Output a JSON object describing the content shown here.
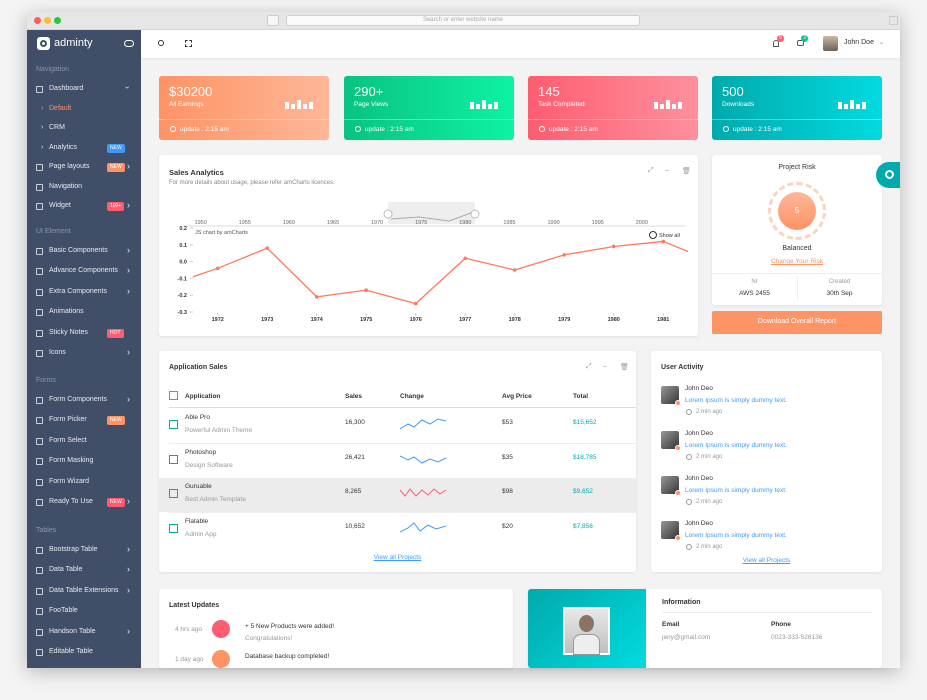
{
  "browser": {
    "address": "Search or enter website name"
  },
  "sidebar": {
    "brand": "adminty",
    "sections": [
      {
        "title": "Navigation",
        "items": [
          {
            "label": "Dashboard",
            "children": [
              {
                "label": "Default"
              },
              {
                "label": "CRM"
              },
              {
                "label": "Analytics",
                "badge": "NEW",
                "badge_color": "#4099ff"
              }
            ]
          },
          {
            "label": "Page layouts",
            "badge": "NEW",
            "badge_color": "#fe9365",
            "submenu": true
          },
          {
            "label": "Navigation"
          },
          {
            "label": "Widget",
            "badge": "100+",
            "badge_color": "#fe5d70",
            "submenu": true
          }
        ]
      },
      {
        "title": "UI Element",
        "items": [
          {
            "label": "Basic Components",
            "submenu": true
          },
          {
            "label": "Advance Components",
            "submenu": true
          },
          {
            "label": "Extra Components",
            "submenu": true
          },
          {
            "label": "Animations"
          },
          {
            "label": "Sticky Notes",
            "badge": "HOT",
            "badge_color": "#fe5d70"
          },
          {
            "label": "Icons",
            "submenu": true
          }
        ]
      },
      {
        "title": "Forms",
        "items": [
          {
            "label": "Form Components",
            "submenu": true
          },
          {
            "label": "Form Picker",
            "badge": "NEW",
            "badge_color": "#fe9365"
          },
          {
            "label": "Form Select"
          },
          {
            "label": "Form Masking"
          },
          {
            "label": "Form Wizard"
          },
          {
            "label": "Ready To Use",
            "badge": "NEW",
            "badge_color": "#fe5d70",
            "submenu": true
          }
        ]
      },
      {
        "title": "Tables",
        "items": [
          {
            "label": "Bootstrap Table",
            "submenu": true
          },
          {
            "label": "Data Table",
            "submenu": true
          },
          {
            "label": "Data Table Extensions",
            "submenu": true
          },
          {
            "label": "FooTable"
          },
          {
            "label": "Handson Table",
            "submenu": true
          },
          {
            "label": "Editable Table"
          }
        ]
      }
    ]
  },
  "header": {
    "notifications": "5",
    "messages": "3",
    "user": "John Doe"
  },
  "stats": [
    {
      "value": "$30200",
      "label": "All Earnings",
      "update": "update : 2:15 am",
      "colors": [
        "#fe9365",
        "#feb798"
      ]
    },
    {
      "value": "290+",
      "label": "Page Views",
      "update": "update : 2:15 am",
      "colors": [
        "#0ac282",
        "#0df3a3"
      ]
    },
    {
      "value": "145",
      "label": "Task Completed",
      "update": "update : 2:15 am",
      "colors": [
        "#fe5d70",
        "#fe909d"
      ]
    },
    {
      "value": "500",
      "label": "Downloads",
      "update": "update : 2:15 am",
      "colors": [
        "#01a9ac",
        "#01dbdf"
      ]
    }
  ],
  "sales_analytics": {
    "title": "Sales Analytics",
    "subtitle": "For more details about usage, please refer amCharts licences.",
    "chart": {
      "type": "line",
      "x": [
        1971.5,
        1972,
        1973,
        1974,
        1975,
        1976,
        1977,
        1978,
        1979,
        1980,
        1981,
        1981.5
      ],
      "values": [
        -0.09,
        -0.04,
        0.08,
        -0.21,
        -0.17,
        -0.25,
        0.02,
        -0.05,
        0.04,
        0.09,
        0.12,
        0.06
      ],
      "color": "#fe7a5a",
      "xlim": [
        1971.5,
        1981.5
      ],
      "xticks": [
        1972,
        1973,
        1974,
        1975,
        1976,
        1977,
        1978,
        1979,
        1980,
        1981
      ],
      "ylim": [
        -0.3,
        0.2
      ],
      "yticks": [
        0.2,
        0.1,
        {
          "value": 0,
          "label": "0.0"
        },
        -0.1,
        -0.2,
        -0.3
      ],
      "scroll_xlim": [
        1948,
        2005
      ],
      "scroll_xticks": [
        1950,
        1955,
        1960,
        1965,
        1970,
        1975,
        1980,
        1985,
        1990,
        1995,
        2000
      ],
      "credit": "JS chart by amCharts",
      "reset": "Show all"
    }
  },
  "project_risk": {
    "title": "Project Risk",
    "score": "5",
    "status": "Balanced",
    "link": "Change Your Risk",
    "nr_label": "Nr",
    "nr_value": "AWS 2455",
    "created_label": "Created",
    "created_value": "30th Sep",
    "button": "Download Overall Report"
  },
  "application_sales": {
    "title": "Application Sales",
    "columns": [
      "Application",
      "Sales",
      "Change",
      "Avg Price",
      "Total"
    ],
    "rows": [
      {
        "name": "Able Pro",
        "desc": "Powerful Admin Theme",
        "sales": "16,300",
        "avg": "$53",
        "total": "$15,652"
      },
      {
        "name": "Photoshop",
        "desc": "Design Software",
        "sales": "26,421",
        "avg": "$35",
        "total": "$18,785"
      },
      {
        "name": "Guruable",
        "desc": "Best Admin Template",
        "sales": "8,265",
        "avg": "$98",
        "total": "$9,652"
      },
      {
        "name": "Flatable",
        "desc": "Admin App",
        "sales": "10,652",
        "avg": "$20",
        "total": "$7,856"
      }
    ],
    "link": "View all Projects"
  },
  "user_activity": {
    "title": "User Activity",
    "items": [
      {
        "name": "John Deo",
        "text": "Lorem Ipsum is simply dummy text.",
        "time": "2 min ago"
      },
      {
        "name": "John Deo",
        "text": "Lorem Ipsum is simply dummy text.",
        "time": "2 min ago"
      },
      {
        "name": "John Deo",
        "text": "Lorem Ipsum is simply dummy text.",
        "time": "2 min ago"
      },
      {
        "name": "John Deo",
        "text": "Lorem Ipsum is simply dummy text.",
        "time": "2 min ago"
      }
    ],
    "link": "View all Projects"
  },
  "latest_updates": {
    "title": "Latest Updates",
    "items": [
      {
        "time": "4 hrs ago",
        "text": "+ 5 New Products were added!",
        "sub": "Congratulations!"
      },
      {
        "time": "1 day ago",
        "text": "Database backup completed!"
      }
    ]
  },
  "profile": {
    "title": "Information",
    "email_label": "Email",
    "email": "jeny@gmail.com",
    "phone_label": "Phone",
    "phone": "0023-333-526136"
  }
}
